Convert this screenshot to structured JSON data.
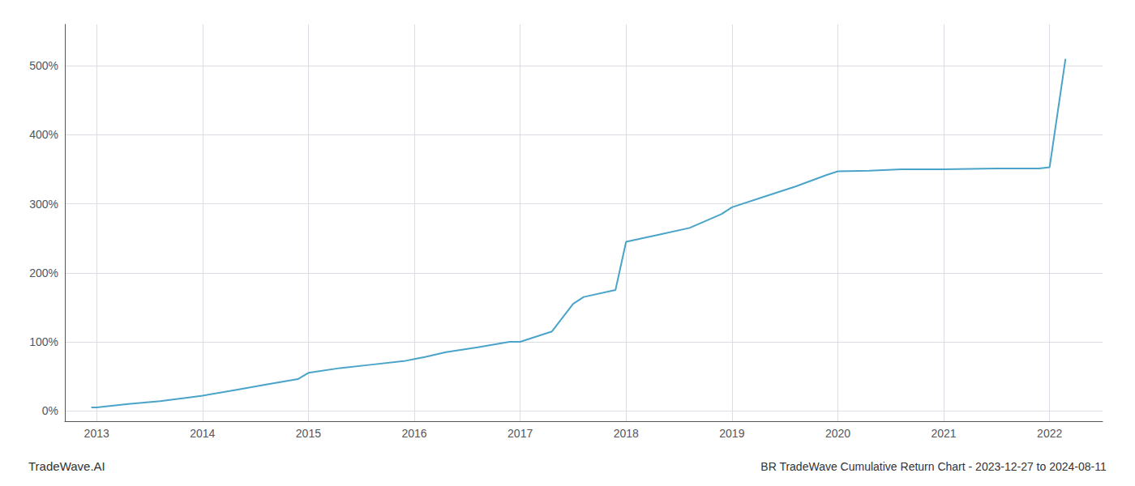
{
  "chart_data": {
    "type": "line",
    "title": "BR TradeWave Cumulative Return Chart - 2023-12-27 to 2024-08-11",
    "annotations": [
      "TradeWave.AI"
    ],
    "x": [
      2012.95,
      2013.0,
      2013.3,
      2013.6,
      2013.9,
      2014.0,
      2014.3,
      2014.6,
      2014.9,
      2015.0,
      2015.3,
      2015.6,
      2015.9,
      2016.0,
      2016.1,
      2016.3,
      2016.6,
      2016.9,
      2017.0,
      2017.3,
      2017.5,
      2017.6,
      2017.9,
      2018.0,
      2018.3,
      2018.6,
      2018.9,
      2019.0,
      2019.3,
      2019.6,
      2019.9,
      2020.0,
      2020.3,
      2020.6,
      2020.7,
      2021.0,
      2021.5,
      2021.9,
      2022.0,
      2022.15
    ],
    "values": [
      5,
      5,
      10,
      14,
      20,
      22,
      30,
      38,
      46,
      55,
      62,
      67,
      72,
      75,
      78,
      85,
      92,
      100,
      100,
      115,
      155,
      165,
      175,
      245,
      255,
      265,
      285,
      295,
      310,
      325,
      342,
      347,
      348,
      350,
      350,
      350,
      351,
      351,
      353,
      510
    ],
    "color": "#4aa3c8",
    "xlim": [
      2012.7,
      2022.5
    ],
    "xticks": [
      2013,
      2014,
      2015,
      2016,
      2017,
      2018,
      2019,
      2020,
      2021,
      2022
    ],
    "ylim": [
      -15,
      560
    ],
    "yticks": [
      {
        "value": 0,
        "label": "0%"
      },
      {
        "value": 100,
        "label": "100%"
      },
      {
        "value": 200,
        "label": "200%"
      },
      {
        "value": 300,
        "label": "300%"
      },
      {
        "value": 400,
        "label": "400%"
      },
      {
        "value": 500,
        "label": "500%"
      }
    ],
    "grid": true
  }
}
